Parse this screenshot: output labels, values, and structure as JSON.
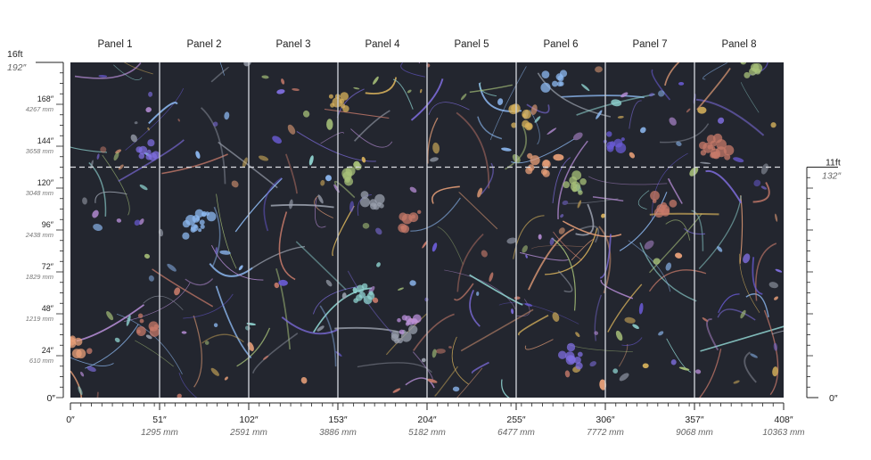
{
  "panels": [
    {
      "label": "Panel 1"
    },
    {
      "label": "Panel 2"
    },
    {
      "label": "Panel 3"
    },
    {
      "label": "Panel 4"
    },
    {
      "label": "Panel 5"
    },
    {
      "label": "Panel 6"
    },
    {
      "label": "Panel 7"
    },
    {
      "label": "Panel 8"
    }
  ],
  "x_axis": {
    "max_in": 408,
    "ticks": [
      {
        "value": 0,
        "label": "0″",
        "mm": ""
      },
      {
        "value": 51,
        "label": "51″",
        "mm": "1295 mm"
      },
      {
        "value": 102,
        "label": "102″",
        "mm": "2591 mm"
      },
      {
        "value": 153,
        "label": "153″",
        "mm": "3886 mm"
      },
      {
        "value": 204,
        "label": "204″",
        "mm": "5182 mm"
      },
      {
        "value": 255,
        "label": "255″",
        "mm": "6477 mm"
      },
      {
        "value": 306,
        "label": "306″",
        "mm": "7772 mm"
      },
      {
        "value": 357,
        "label": "357″",
        "mm": "9068 mm"
      },
      {
        "value": 408,
        "label": "408″",
        "mm": "10363 mm"
      }
    ]
  },
  "y_axis_left": {
    "max_in": 192,
    "top_ft": "16ft",
    "top_in": "192″",
    "ticks": [
      {
        "value": 168,
        "label": "168″",
        "mm": "4267 mm"
      },
      {
        "value": 144,
        "label": "144″",
        "mm": "3658 mm"
      },
      {
        "value": 120,
        "label": "120″",
        "mm": "3048 mm"
      },
      {
        "value": 96,
        "label": "96″",
        "mm": "2438 mm"
      },
      {
        "value": 72,
        "label": "72″",
        "mm": "1829 mm"
      },
      {
        "value": 48,
        "label": "48″",
        "mm": "1219 mm"
      },
      {
        "value": 24,
        "label": "24″",
        "mm": "610 mm"
      },
      {
        "value": 0,
        "label": "0″",
        "mm": ""
      }
    ]
  },
  "y_axis_right": {
    "marker_in": 132,
    "marker_ft": "11ft",
    "marker_label": "132″",
    "zero_label": "0″"
  },
  "colors": {
    "mural_bg": "#23262f",
    "panel_divider": "#c9ccd2",
    "dashed_line": "#d9dbe0",
    "axis": "#222222",
    "plants": [
      "#7f6ee0",
      "#6a5bd6",
      "#8fd3d0",
      "#e9a079",
      "#d9b35c",
      "#a8c27a",
      "#9aa0ad",
      "#c77a6a",
      "#8db9f2",
      "#b98fd9"
    ]
  }
}
